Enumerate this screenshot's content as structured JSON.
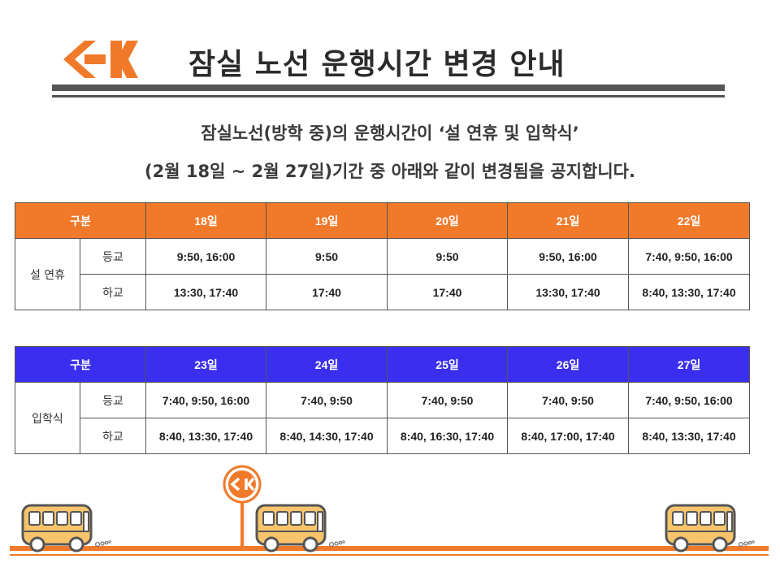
{
  "header": {
    "title": "잠실 노선 운행시간 변경 안내",
    "brand_color": "#f07a2a"
  },
  "notice": {
    "line1": "잠실노선(방학 중)의 운행시간이   ‘설 연휴 및 입학식’",
    "line2": "(2월 18일 ~ 2월 27일)기간 중 아래와 같이 변경됨을 공지합니다."
  },
  "tables": [
    {
      "header_color": "#f07a2a",
      "group_label": "구분",
      "section": "설 연휴",
      "days": [
        "18일",
        "19일",
        "20일",
        "21일",
        "22일"
      ],
      "rows": [
        {
          "label": "등교",
          "values": [
            "9:50, 16:00",
            "9:50",
            "9:50",
            "9:50, 16:00",
            "7:40, 9:50, 16:00"
          ]
        },
        {
          "label": "하교",
          "values": [
            "13:30, 17:40",
            "17:40",
            "17:40",
            "13:30, 17:40",
            "8:40, 13:30, 17:40"
          ]
        }
      ]
    },
    {
      "header_color": "#3b2fef",
      "group_label": "구분",
      "section": "입학식",
      "days": [
        "23일",
        "24일",
        "25일",
        "26일",
        "27일"
      ],
      "rows": [
        {
          "label": "등교",
          "values": [
            "7:40, 9:50, 16:00",
            "7:40, 9:50",
            "7:40, 9:50",
            "7:40, 9:50",
            "7:40, 9:50, 16:00"
          ]
        },
        {
          "label": "하교",
          "values": [
            "8:40, 13:30, 17:40",
            "8:40, 14:30, 17:40",
            "8:40, 16:30, 17:40",
            "8:40, 17:00, 17:40",
            "8:40, 13:30, 17:40"
          ]
        }
      ]
    }
  ],
  "icons": {
    "logo": "ck-logo-icon",
    "bus": "bus-icon",
    "bus_stop": "bus-stop-sign-icon"
  }
}
